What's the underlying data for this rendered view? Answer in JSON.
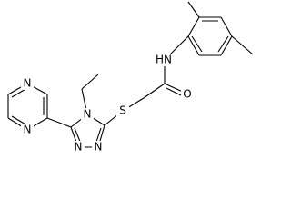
{
  "atoms": [
    {
      "label": "N"
    },
    {
      "label": "N"
    },
    {
      "label": "N"
    },
    {
      "label": "N"
    },
    {
      "label": "N"
    },
    {
      "label": "S"
    },
    {
      "label": "O"
    },
    {
      "label": "HN"
    }
  ]
}
